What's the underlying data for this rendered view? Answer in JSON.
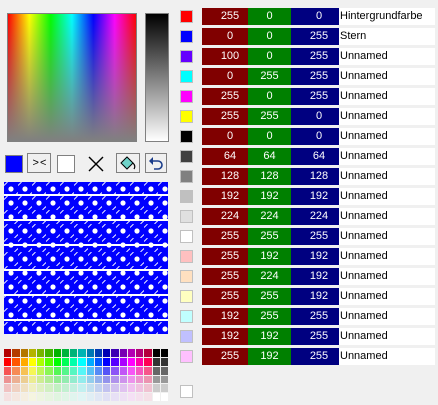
{
  "current_color": "#0000ff",
  "second_color": "#ffffff",
  "buttons": {
    "swap": "> <"
  },
  "colors": [
    {
      "hex": "#ff0000",
      "r": "255",
      "g": "0",
      "b": "0",
      "name": "Hintergrundfarbe"
    },
    {
      "hex": "#0000ff",
      "r": "0",
      "g": "0",
      "b": "255",
      "name": "Stern"
    },
    {
      "hex": "#6400ff",
      "r": "100",
      "g": "0",
      "b": "255",
      "name": "Unnamed"
    },
    {
      "hex": "#00ffff",
      "r": "0",
      "g": "255",
      "b": "255",
      "name": "Unnamed"
    },
    {
      "hex": "#ff00ff",
      "r": "255",
      "g": "0",
      "b": "255",
      "name": "Unnamed"
    },
    {
      "hex": "#ffff00",
      "r": "255",
      "g": "255",
      "b": "0",
      "name": "Unnamed"
    },
    {
      "hex": "#000000",
      "r": "0",
      "g": "0",
      "b": "0",
      "name": "Unnamed"
    },
    {
      "hex": "#404040",
      "r": "64",
      "g": "64",
      "b": "64",
      "name": "Unnamed"
    },
    {
      "hex": "#808080",
      "r": "128",
      "g": "128",
      "b": "128",
      "name": "Unnamed"
    },
    {
      "hex": "#c0c0c0",
      "r": "192",
      "g": "192",
      "b": "192",
      "name": "Unnamed"
    },
    {
      "hex": "#e0e0e0",
      "r": "224",
      "g": "224",
      "b": "224",
      "name": "Unnamed"
    },
    {
      "hex": "#ffffff",
      "r": "255",
      "g": "255",
      "b": "255",
      "name": "Unnamed"
    },
    {
      "hex": "#ffc0c0",
      "r": "255",
      "g": "192",
      "b": "192",
      "name": "Unnamed"
    },
    {
      "hex": "#ffe0c0",
      "r": "255",
      "g": "224",
      "b": "192",
      "name": "Unnamed"
    },
    {
      "hex": "#ffffc0",
      "r": "255",
      "g": "255",
      "b": "192",
      "name": "Unnamed"
    },
    {
      "hex": "#c0ffff",
      "r": "192",
      "g": "255",
      "b": "255",
      "name": "Unnamed"
    },
    {
      "hex": "#c0c0ff",
      "r": "192",
      "g": "192",
      "b": "255",
      "name": "Unnamed"
    },
    {
      "hex": "#ffc0ff",
      "r": "255",
      "g": "192",
      "b": "255",
      "name": "Unnamed"
    }
  ],
  "empty_slot": "#ffffff",
  "icons": [
    "swap-icon",
    "clear-icon",
    "fill-bucket-icon",
    "undo-icon"
  ]
}
